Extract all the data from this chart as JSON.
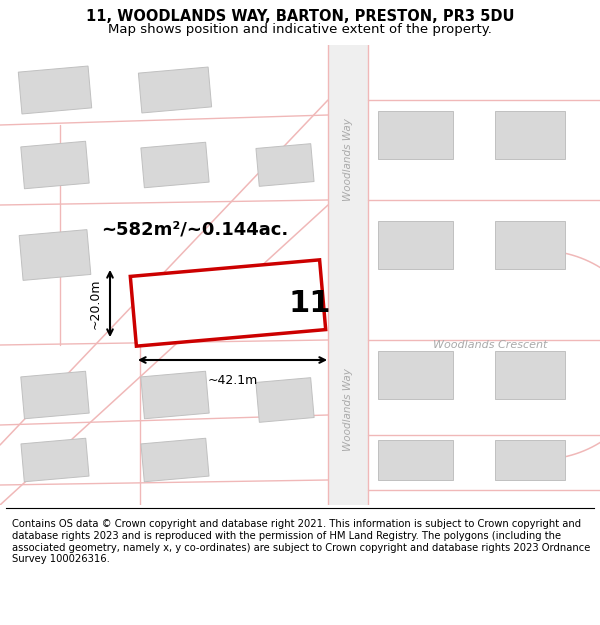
{
  "title": "11, WOODLANDS WAY, BARTON, PRESTON, PR3 5DU",
  "subtitle": "Map shows position and indicative extent of the property.",
  "footer": "Contains OS data © Crown copyright and database right 2021. This information is subject to Crown copyright and database rights 2023 and is reproduced with the permission of HM Land Registry. The polygons (including the associated geometry, namely x, y co-ordinates) are subject to Crown copyright and database rights 2023 Ordnance Survey 100026316.",
  "bg_color": "#ffffff",
  "road_color": "#f0b8b8",
  "building_color": "#d8d8d8",
  "building_edge": "#c0c0c0",
  "highlight_color": "#cc0000",
  "title_fontsize": 10.5,
  "subtitle_fontsize": 9.5,
  "footer_fontsize": 7.2,
  "area_text": "~582m²/~0.144ac.",
  "width_text": "~42.1m",
  "height_text": "~20.0m",
  "plot_number": "11",
  "road_label_color": "#aaaaaa",
  "road_label_size": 7.5
}
